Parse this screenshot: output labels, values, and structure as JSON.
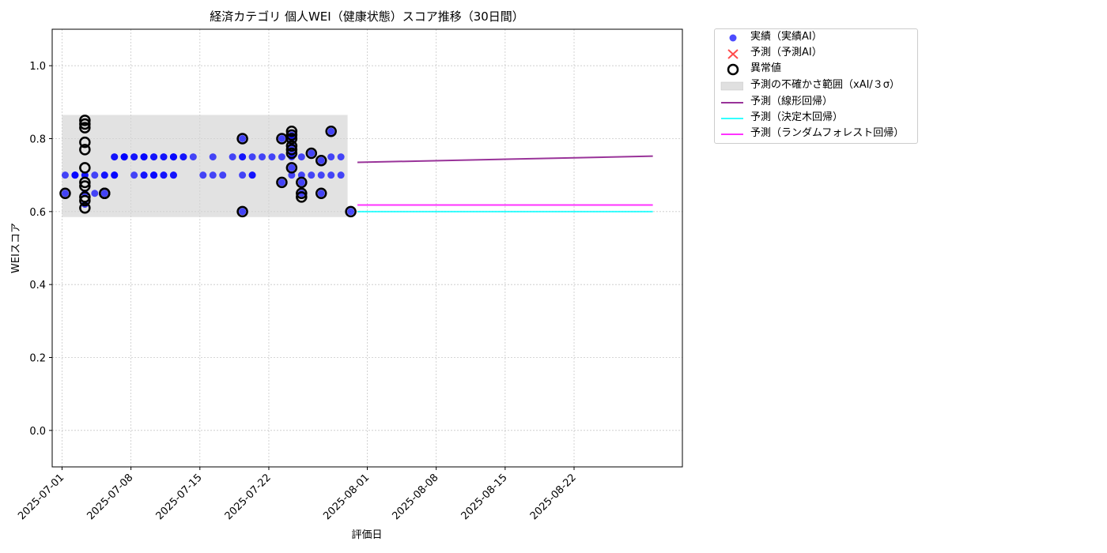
{
  "chart_data": {
    "type": "scatter",
    "title": "経済カテゴリ 個人WEI（健康状態）スコア推移（30日間）",
    "xlabel": "評価日",
    "ylabel": "WEIスコア",
    "xlim": [
      "2025-06-30",
      "2025-09-02"
    ],
    "ylim": [
      -0.1,
      1.1
    ],
    "x_ticks": [
      "2025-07-01",
      "2025-07-08",
      "2025-07-15",
      "2025-07-22",
      "2025-08-01",
      "2025-08-08",
      "2025-08-15",
      "2025-08-22"
    ],
    "y_ticks": [
      "0.0",
      "0.2",
      "0.4",
      "0.6",
      "0.8",
      "1.0"
    ],
    "grid": true,
    "legend_position": "outside-top-right",
    "colors": {
      "actual": "#0000ff",
      "predicted": "#ff0000",
      "anomaly": "#000000",
      "uncertainty": "#d3d3d3",
      "linear": "#800080",
      "tree": "#00ffff",
      "forest": "#ff00ff"
    },
    "legend": [
      {
        "key": "actual",
        "label": "実績（実績AI）"
      },
      {
        "key": "predicted",
        "label": "予測（予測AI）"
      },
      {
        "key": "anomaly",
        "label": "異常値"
      },
      {
        "key": "uncertainty",
        "label": "予測の不確かさ範囲（xAI/３σ）"
      },
      {
        "key": "linear",
        "label": "予測（線形回帰）"
      },
      {
        "key": "tree",
        "label": "予測（決定木回帰）"
      },
      {
        "key": "forest",
        "label": "予測（ランダムフォレスト回帰）"
      }
    ],
    "series": [
      {
        "key": "actual",
        "name": "実績（実績AI）",
        "points": [
          [
            "2025-07-01",
            0.65
          ],
          [
            "2025-07-01",
            0.7
          ],
          [
            "2025-07-02",
            0.7
          ],
          [
            "2025-07-02",
            0.7
          ],
          [
            "2025-07-02",
            0.7
          ],
          [
            "2025-07-03",
            0.7
          ],
          [
            "2025-07-03",
            0.62
          ],
          [
            "2025-07-03",
            0.65
          ],
          [
            "2025-07-03",
            0.7
          ],
          [
            "2025-07-04",
            0.7
          ],
          [
            "2025-07-04",
            0.65
          ],
          [
            "2025-07-05",
            0.65
          ],
          [
            "2025-07-05",
            0.7
          ],
          [
            "2025-07-05",
            0.7
          ],
          [
            "2025-07-06",
            0.7
          ],
          [
            "2025-07-06",
            0.75
          ],
          [
            "2025-07-06",
            0.7
          ],
          [
            "2025-07-06",
            0.75
          ],
          [
            "2025-07-06",
            0.7
          ],
          [
            "2025-07-07",
            0.75
          ],
          [
            "2025-07-07",
            0.75
          ],
          [
            "2025-07-07",
            0.75
          ],
          [
            "2025-07-07",
            0.75
          ],
          [
            "2025-07-08",
            0.75
          ],
          [
            "2025-07-08",
            0.75
          ],
          [
            "2025-07-08",
            0.7
          ],
          [
            "2025-07-09",
            0.7
          ],
          [
            "2025-07-09",
            0.75
          ],
          [
            "2025-07-09",
            0.7
          ],
          [
            "2025-07-09",
            0.75
          ],
          [
            "2025-07-09",
            0.75
          ],
          [
            "2025-07-10",
            0.75
          ],
          [
            "2025-07-10",
            0.7
          ],
          [
            "2025-07-10",
            0.75
          ],
          [
            "2025-07-10",
            0.7
          ],
          [
            "2025-07-10",
            0.7
          ],
          [
            "2025-07-11",
            0.7
          ],
          [
            "2025-07-11",
            0.75
          ],
          [
            "2025-07-11",
            0.7
          ],
          [
            "2025-07-11",
            0.75
          ],
          [
            "2025-07-12",
            0.75
          ],
          [
            "2025-07-12",
            0.75
          ],
          [
            "2025-07-12",
            0.75
          ],
          [
            "2025-07-12",
            0.7
          ],
          [
            "2025-07-12",
            0.7
          ],
          [
            "2025-07-13",
            0.75
          ],
          [
            "2025-07-13",
            0.75
          ],
          [
            "2025-07-14",
            0.75
          ],
          [
            "2025-07-15",
            0.7
          ],
          [
            "2025-07-16",
            0.75
          ],
          [
            "2025-07-16",
            0.7
          ],
          [
            "2025-07-17",
            0.7
          ],
          [
            "2025-07-18",
            0.75
          ],
          [
            "2025-07-19",
            0.75
          ],
          [
            "2025-07-19",
            0.6
          ],
          [
            "2025-07-19",
            0.7
          ],
          [
            "2025-07-19",
            0.8
          ],
          [
            "2025-07-19",
            0.75
          ],
          [
            "2025-07-20",
            0.7
          ],
          [
            "2025-07-20",
            0.75
          ],
          [
            "2025-07-20",
            0.7
          ],
          [
            "2025-07-21",
            0.75
          ],
          [
            "2025-07-22",
            0.75
          ],
          [
            "2025-07-23",
            0.8
          ],
          [
            "2025-07-23",
            0.75
          ],
          [
            "2025-07-23",
            0.68
          ],
          [
            "2025-07-24",
            0.7
          ],
          [
            "2025-07-24",
            0.75
          ],
          [
            "2025-07-24",
            0.8
          ],
          [
            "2025-07-24",
            0.72
          ],
          [
            "2025-07-24",
            0.76
          ],
          [
            "2025-07-24",
            0.78
          ],
          [
            "2025-07-24",
            0.81
          ],
          [
            "2025-07-25",
            0.65
          ],
          [
            "2025-07-25",
            0.7
          ],
          [
            "2025-07-25",
            0.68
          ],
          [
            "2025-07-25",
            0.75
          ],
          [
            "2025-07-26",
            0.76
          ],
          [
            "2025-07-26",
            0.7
          ],
          [
            "2025-07-27",
            0.74
          ],
          [
            "2025-07-27",
            0.7
          ],
          [
            "2025-07-27",
            0.65
          ],
          [
            "2025-07-28",
            0.82
          ],
          [
            "2025-07-28",
            0.75
          ],
          [
            "2025-07-28",
            0.7
          ],
          [
            "2025-07-29",
            0.75
          ],
          [
            "2025-07-29",
            0.7
          ],
          [
            "2025-07-30",
            0.6
          ]
        ]
      },
      {
        "key": "anomaly",
        "name": "異常値",
        "points": [
          [
            "2025-07-01",
            0.65
          ],
          [
            "2025-07-03",
            0.85
          ],
          [
            "2025-07-03",
            0.84
          ],
          [
            "2025-07-03",
            0.83
          ],
          [
            "2025-07-03",
            0.79
          ],
          [
            "2025-07-03",
            0.77
          ],
          [
            "2025-07-03",
            0.72
          ],
          [
            "2025-07-03",
            0.68
          ],
          [
            "2025-07-03",
            0.67
          ],
          [
            "2025-07-03",
            0.64
          ],
          [
            "2025-07-03",
            0.63
          ],
          [
            "2025-07-03",
            0.61
          ],
          [
            "2025-07-05",
            0.65
          ],
          [
            "2025-07-05",
            0.65
          ],
          [
            "2025-07-19",
            0.8
          ],
          [
            "2025-07-19",
            0.6
          ],
          [
            "2025-07-23",
            0.8
          ],
          [
            "2025-07-23",
            0.68
          ],
          [
            "2025-07-24",
            0.82
          ],
          [
            "2025-07-24",
            0.81
          ],
          [
            "2025-07-24",
            0.8
          ],
          [
            "2025-07-24",
            0.78
          ],
          [
            "2025-07-24",
            0.77
          ],
          [
            "2025-07-24",
            0.76
          ],
          [
            "2025-07-24",
            0.72
          ],
          [
            "2025-07-25",
            0.68
          ],
          [
            "2025-07-25",
            0.65
          ],
          [
            "2025-07-25",
            0.64
          ],
          [
            "2025-07-26",
            0.76
          ],
          [
            "2025-07-27",
            0.74
          ],
          [
            "2025-07-27",
            0.65
          ],
          [
            "2025-07-28",
            0.82
          ],
          [
            "2025-07-30",
            0.6
          ]
        ]
      }
    ],
    "band": {
      "key": "uncertainty",
      "name": "予測の不確かさ範囲（xAI/３σ）",
      "x": [
        "2025-07-01",
        "2025-07-30"
      ],
      "lower": 0.585,
      "upper": 0.865
    },
    "lines": [
      {
        "key": "linear",
        "name": "予測（線形回帰）",
        "x": [
          "2025-07-31",
          "2025-08-30"
        ],
        "y": [
          0.735,
          0.752
        ]
      },
      {
        "key": "tree",
        "name": "予測（決定木回帰）",
        "x": [
          "2025-07-31",
          "2025-08-30"
        ],
        "y": [
          0.6,
          0.6
        ]
      },
      {
        "key": "forest",
        "name": "予測（ランダムフォレスト回帰）",
        "x": [
          "2025-07-31",
          "2025-08-30"
        ],
        "y": [
          0.618,
          0.618
        ]
      }
    ]
  }
}
